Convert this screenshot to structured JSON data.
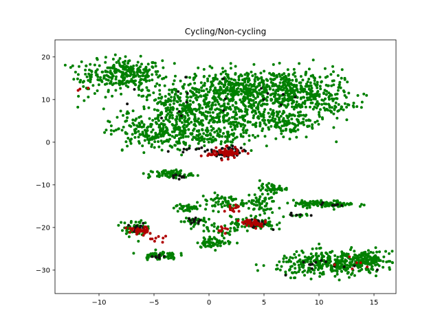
{
  "chart_data": {
    "type": "scatter",
    "title": "Cycling/Non-cycling",
    "xlabel": "",
    "ylabel": "",
    "xlim": [
      -14,
      17
    ],
    "ylim": [
      -35.5,
      24
    ],
    "xticks": [
      -10,
      -5,
      0,
      5,
      10,
      15
    ],
    "yticks": [
      -30,
      -20,
      -10,
      0,
      10,
      20
    ],
    "grid": false,
    "legend": "none",
    "colors": {
      "non_cycling": "#008000",
      "cycling_dark": "#111111",
      "cycling_red": "#b00000"
    },
    "clusters": [
      {
        "group": "non_cycling",
        "cx": -7.5,
        "cy": 16.0,
        "sx": 1.6,
        "sy": 1.8,
        "n": 260
      },
      {
        "group": "non_cycling",
        "cx": -11.0,
        "cy": 15.0,
        "sx": 0.9,
        "sy": 2.0,
        "n": 40
      },
      {
        "group": "non_cycling",
        "cx": -2.0,
        "cy": 7.0,
        "sx": 2.6,
        "sy": 3.5,
        "n": 420
      },
      {
        "group": "non_cycling",
        "cx": -5.0,
        "cy": 2.0,
        "sx": 2.0,
        "sy": 2.0,
        "n": 180
      },
      {
        "group": "non_cycling",
        "cx": 3.0,
        "cy": 12.5,
        "sx": 2.5,
        "sy": 2.2,
        "n": 380
      },
      {
        "group": "non_cycling",
        "cx": 7.5,
        "cy": 12.0,
        "sx": 2.3,
        "sy": 2.5,
        "n": 320
      },
      {
        "group": "non_cycling",
        "cx": 10.5,
        "cy": 9.0,
        "sx": 1.5,
        "sy": 2.0,
        "n": 80
      },
      {
        "group": "non_cycling",
        "cx": 4.5,
        "cy": 5.5,
        "sx": 2.5,
        "sy": 2.5,
        "n": 200
      },
      {
        "group": "non_cycling",
        "cx": 7.5,
        "cy": 4.5,
        "sx": 1.2,
        "sy": 1.2,
        "n": 60
      },
      {
        "group": "non_cycling",
        "cx": 0.5,
        "cy": 1.5,
        "sx": 1.5,
        "sy": 1.0,
        "n": 80
      },
      {
        "group": "non_cycling",
        "cx": -3.5,
        "cy": -7.5,
        "sx": 1.0,
        "sy": 0.5,
        "n": 70
      },
      {
        "group": "non_cycling",
        "cx": 5.8,
        "cy": -10.8,
        "sx": 0.6,
        "sy": 0.5,
        "n": 45
      },
      {
        "group": "non_cycling",
        "cx": -2.0,
        "cy": -15.5,
        "sx": 0.6,
        "sy": 0.5,
        "n": 35
      },
      {
        "group": "non_cycling",
        "cx": -1.5,
        "cy": -18.5,
        "sx": 0.6,
        "sy": 0.6,
        "n": 35
      },
      {
        "group": "non_cycling",
        "cx": 1.2,
        "cy": -14.0,
        "sx": 1.0,
        "sy": 1.0,
        "n": 60
      },
      {
        "group": "non_cycling",
        "cx": 4.5,
        "cy": -14.5,
        "sx": 0.8,
        "sy": 1.2,
        "n": 60
      },
      {
        "group": "non_cycling",
        "cx": 4.0,
        "cy": -19.0,
        "sx": 1.0,
        "sy": 0.8,
        "n": 80
      },
      {
        "group": "non_cycling",
        "cx": 1.5,
        "cy": -20.5,
        "sx": 0.9,
        "sy": 0.7,
        "n": 30
      },
      {
        "group": "non_cycling",
        "cx": 0.5,
        "cy": -23.5,
        "sx": 0.8,
        "sy": 0.6,
        "n": 60
      },
      {
        "group": "non_cycling",
        "cx": -6.8,
        "cy": -20.2,
        "sx": 0.6,
        "sy": 1.0,
        "n": 60
      },
      {
        "group": "non_cycling",
        "cx": -4.5,
        "cy": -26.5,
        "sx": 0.8,
        "sy": 0.5,
        "n": 60
      },
      {
        "group": "non_cycling",
        "cx": 10.5,
        "cy": -14.5,
        "sx": 1.4,
        "sy": 0.4,
        "n": 110
      },
      {
        "group": "non_cycling",
        "cx": 8.2,
        "cy": -17.2,
        "sx": 0.5,
        "sy": 0.3,
        "n": 12
      },
      {
        "group": "non_cycling",
        "cx": 11.0,
        "cy": -28.5,
        "sx": 2.4,
        "sy": 1.4,
        "n": 340
      },
      {
        "group": "non_cycling",
        "cx": 14.5,
        "cy": -27.5,
        "sx": 0.8,
        "sy": 1.0,
        "n": 110
      },
      {
        "group": "cycling_dark",
        "cx": 1.5,
        "cy": -2.5,
        "sx": 0.8,
        "sy": 0.8,
        "n": 45
      },
      {
        "group": "cycling_red",
        "cx": 1.5,
        "cy": -2.5,
        "sx": 0.8,
        "sy": 0.6,
        "n": 80
      },
      {
        "group": "cycling_red",
        "cx": 4.0,
        "cy": -19.0,
        "sx": 0.6,
        "sy": 0.5,
        "n": 40
      },
      {
        "group": "cycling_dark",
        "cx": 4.3,
        "cy": -19.0,
        "sx": 0.6,
        "sy": 0.5,
        "n": 20
      },
      {
        "group": "cycling_red",
        "cx": -6.5,
        "cy": -20.8,
        "sx": 0.5,
        "sy": 0.5,
        "n": 35
      },
      {
        "group": "cycling_dark",
        "cx": -6.5,
        "cy": -20.2,
        "sx": 0.5,
        "sy": 0.5,
        "n": 15
      },
      {
        "group": "cycling_red",
        "cx": 2.2,
        "cy": -15.5,
        "sx": 0.4,
        "sy": 0.4,
        "n": 12
      },
      {
        "group": "cycling_red",
        "cx": 1.5,
        "cy": -20.5,
        "sx": 0.5,
        "sy": 0.5,
        "n": 8
      },
      {
        "group": "cycling_red",
        "cx": -4.5,
        "cy": -22.5,
        "sx": 0.5,
        "sy": 0.4,
        "n": 8
      },
      {
        "group": "cycling_dark",
        "cx": -1.5,
        "cy": -18.5,
        "sx": 0.4,
        "sy": 0.4,
        "n": 10
      },
      {
        "group": "cycling_dark",
        "cx": -2.8,
        "cy": -8.2,
        "sx": 0.4,
        "sy": 0.3,
        "n": 8
      },
      {
        "group": "cycling_dark",
        "cx": 8.0,
        "cy": -17.0,
        "sx": 0.3,
        "sy": 0.2,
        "n": 6
      },
      {
        "group": "cycling_dark",
        "cx": -4.5,
        "cy": -26.8,
        "sx": 0.4,
        "sy": 0.3,
        "n": 8
      },
      {
        "group": "cycling_dark",
        "cx": 11.0,
        "cy": -28.5,
        "sx": 1.8,
        "sy": 1.0,
        "n": 14
      },
      {
        "group": "cycling_red",
        "cx": 12.5,
        "cy": -28.5,
        "sx": 1.0,
        "sy": 1.0,
        "n": 6
      },
      {
        "group": "cycling_dark",
        "cx": 11.0,
        "cy": -14.5,
        "sx": 0.6,
        "sy": 0.3,
        "n": 6
      },
      {
        "group": "cycling_red",
        "cx": -11.5,
        "cy": 12.3,
        "sx": 0.3,
        "sy": 0.3,
        "n": 3
      },
      {
        "group": "cycling_dark",
        "cx": 0.0,
        "cy": 6.0,
        "sx": 3.0,
        "sy": 4.0,
        "n": 12
      },
      {
        "group": "cycling_dark",
        "cx": 6.0,
        "cy": 11.5,
        "sx": 1.5,
        "sy": 1.5,
        "n": 6
      },
      {
        "group": "cycling_dark",
        "cx": -1.5,
        "cy": -1.8,
        "sx": 0.8,
        "sy": 0.4,
        "n": 8
      }
    ]
  }
}
